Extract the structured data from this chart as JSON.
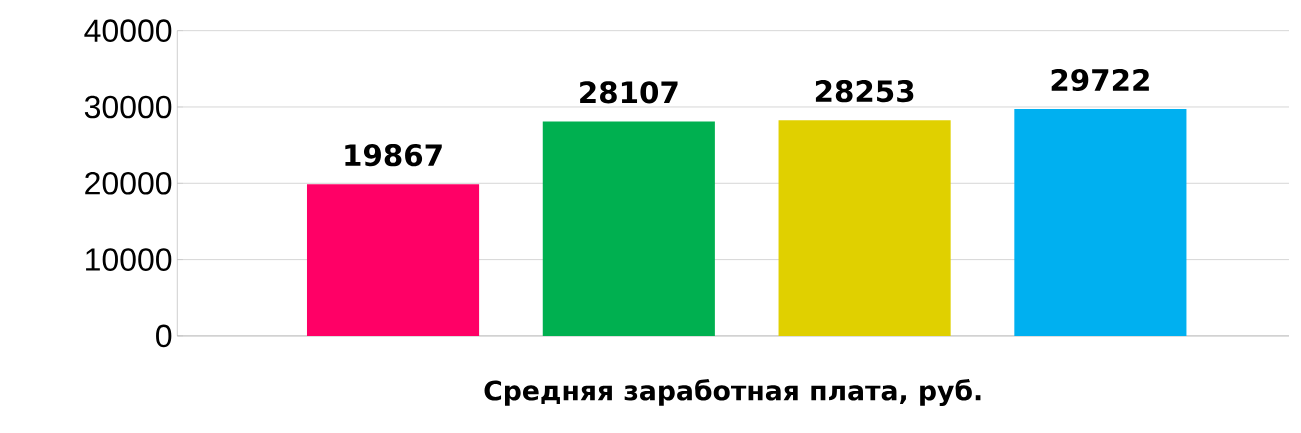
{
  "chart_data": {
    "type": "bar",
    "xlabel": "**Средняя заработная плата, руб.**",
    "categories": [
      null,
      null,
      null,
      null
    ],
    "values": [
      19867,
      28107,
      28253,
      29722
    ],
    "colors": [
      "#ff0066",
      "#00b050",
      "#e0d000",
      "#00b0f0"
    ],
    "ylim": [
      0,
      40000
    ],
    "yticks": [
      0,
      10000,
      20000,
      30000,
      40000
    ],
    "grid": "y",
    "data_labels": true
  }
}
